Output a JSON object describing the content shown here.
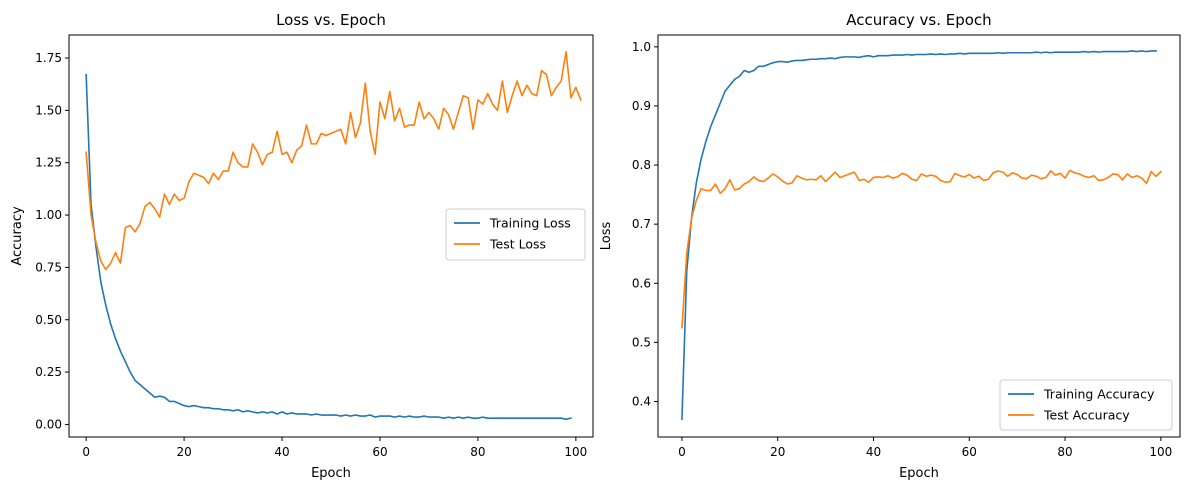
{
  "chart_data": [
    {
      "type": "line",
      "title": "Loss vs. Epoch",
      "xlabel": "Epoch",
      "ylabel": "Accuracy",
      "xlim": [
        -3.5,
        103.5
      ],
      "ylim": [
        -0.06,
        1.86
      ],
      "xticks": [
        0,
        20,
        40,
        60,
        80,
        100
      ],
      "xtick_labels": [
        "0",
        "20",
        "40",
        "60",
        "80",
        "100"
      ],
      "yticks": [
        0,
        0.25,
        0.5,
        0.75,
        1.0,
        1.25,
        1.5,
        1.75
      ],
      "ytick_labels": [
        "0.00",
        "0.25",
        "0.50",
        "0.75",
        "1.00",
        "1.25",
        "1.50",
        "1.75"
      ],
      "grid": false,
      "legend_position": "center-right",
      "series": [
        {
          "name": "Training Loss",
          "color": "#1f77b4",
          "x_start": 0,
          "values": [
            1.67,
            1.05,
            0.85,
            0.68,
            0.57,
            0.48,
            0.41,
            0.35,
            0.3,
            0.25,
            0.21,
            0.19,
            0.17,
            0.15,
            0.13,
            0.135,
            0.13,
            0.11,
            0.11,
            0.1,
            0.09,
            0.085,
            0.09,
            0.085,
            0.08,
            0.08,
            0.075,
            0.075,
            0.07,
            0.07,
            0.065,
            0.07,
            0.06,
            0.065,
            0.06,
            0.055,
            0.06,
            0.055,
            0.06,
            0.05,
            0.06,
            0.05,
            0.055,
            0.05,
            0.05,
            0.05,
            0.045,
            0.05,
            0.045,
            0.045,
            0.045,
            0.045,
            0.04,
            0.045,
            0.04,
            0.045,
            0.04,
            0.04,
            0.045,
            0.035,
            0.04,
            0.04,
            0.04,
            0.035,
            0.04,
            0.035,
            0.04,
            0.035,
            0.035,
            0.04,
            0.035,
            0.035,
            0.035,
            0.03,
            0.035,
            0.03,
            0.035,
            0.03,
            0.035,
            0.03,
            0.03,
            0.035,
            0.03,
            0.03,
            0.03,
            0.03,
            0.03,
            0.03,
            0.03,
            0.03,
            0.03,
            0.03,
            0.03,
            0.03,
            0.03,
            0.03,
            0.03,
            0.03,
            0.025,
            0.03
          ]
        },
        {
          "name": "Test Loss",
          "color": "#ff7f0e",
          "x_start": 0,
          "values": [
            1.3,
            1.0,
            0.87,
            0.78,
            0.74,
            0.77,
            0.82,
            0.77,
            0.94,
            0.95,
            0.92,
            0.96,
            1.04,
            1.06,
            1.03,
            0.99,
            1.1,
            1.05,
            1.1,
            1.07,
            1.08,
            1.16,
            1.2,
            1.19,
            1.18,
            1.15,
            1.2,
            1.17,
            1.21,
            1.21,
            1.3,
            1.25,
            1.23,
            1.23,
            1.34,
            1.3,
            1.24,
            1.29,
            1.3,
            1.4,
            1.29,
            1.3,
            1.25,
            1.31,
            1.33,
            1.43,
            1.34,
            1.34,
            1.39,
            1.38,
            1.39,
            1.4,
            1.41,
            1.34,
            1.49,
            1.37,
            1.44,
            1.63,
            1.4,
            1.29,
            1.54,
            1.46,
            1.59,
            1.45,
            1.51,
            1.42,
            1.43,
            1.43,
            1.54,
            1.46,
            1.49,
            1.46,
            1.41,
            1.51,
            1.48,
            1.41,
            1.49,
            1.57,
            1.56,
            1.41,
            1.55,
            1.53,
            1.58,
            1.53,
            1.5,
            1.64,
            1.49,
            1.57,
            1.64,
            1.57,
            1.62,
            1.58,
            1.57,
            1.69,
            1.67,
            1.57,
            1.61,
            1.64,
            1.78,
            1.56,
            1.61,
            1.55
          ]
        }
      ]
    },
    {
      "type": "line",
      "title": "Accuracy vs. Epoch",
      "xlabel": "Epoch",
      "ylabel": "Loss",
      "xlim": [
        -5,
        104
      ],
      "ylim": [
        0.34,
        1.02
      ],
      "xticks": [
        0,
        20,
        40,
        60,
        80,
        100
      ],
      "xtick_labels": [
        "0",
        "20",
        "40",
        "60",
        "80",
        "100"
      ],
      "yticks": [
        0.4,
        0.5,
        0.6,
        0.7,
        0.8,
        0.9,
        1.0
      ],
      "ytick_labels": [
        "0.4",
        "0.5",
        "0.6",
        "0.7",
        "0.8",
        "0.9",
        "1.0"
      ],
      "grid": false,
      "legend_position": "lower-right",
      "series": [
        {
          "name": "Training Accuracy",
          "color": "#1f77b4",
          "x_start": 0,
          "values": [
            0.37,
            0.62,
            0.71,
            0.77,
            0.81,
            0.84,
            0.865,
            0.885,
            0.905,
            0.925,
            0.935,
            0.945,
            0.95,
            0.96,
            0.957,
            0.96,
            0.967,
            0.967,
            0.97,
            0.973,
            0.975,
            0.975,
            0.974,
            0.976,
            0.977,
            0.977,
            0.978,
            0.979,
            0.979,
            0.98,
            0.98,
            0.981,
            0.98,
            0.982,
            0.983,
            0.983,
            0.983,
            0.982,
            0.984,
            0.985,
            0.983,
            0.985,
            0.985,
            0.985,
            0.986,
            0.986,
            0.986,
            0.987,
            0.986,
            0.987,
            0.987,
            0.987,
            0.988,
            0.987,
            0.988,
            0.987,
            0.988,
            0.988,
            0.989,
            0.988,
            0.989,
            0.989,
            0.989,
            0.989,
            0.989,
            0.989,
            0.99,
            0.989,
            0.99,
            0.99,
            0.99,
            0.99,
            0.99,
            0.99,
            0.991,
            0.99,
            0.991,
            0.99,
            0.991,
            0.991,
            0.991,
            0.991,
            0.991,
            0.991,
            0.992,
            0.991,
            0.992,
            0.991,
            0.992,
            0.992,
            0.992,
            0.992,
            0.992,
            0.992,
            0.993,
            0.992,
            0.993,
            0.992,
            0.993,
            0.993
          ]
        },
        {
          "name": "Test Accuracy",
          "color": "#ff7f0e",
          "x_start": 0,
          "values": [
            0.525,
            0.65,
            0.71,
            0.74,
            0.76,
            0.757,
            0.757,
            0.768,
            0.752,
            0.76,
            0.775,
            0.758,
            0.76,
            0.768,
            0.772,
            0.78,
            0.774,
            0.772,
            0.778,
            0.785,
            0.78,
            0.773,
            0.768,
            0.77,
            0.782,
            0.778,
            0.775,
            0.776,
            0.775,
            0.782,
            0.772,
            0.78,
            0.788,
            0.779,
            0.782,
            0.785,
            0.788,
            0.774,
            0.776,
            0.771,
            0.779,
            0.78,
            0.779,
            0.782,
            0.778,
            0.78,
            0.786,
            0.783,
            0.776,
            0.774,
            0.785,
            0.781,
            0.783,
            0.781,
            0.774,
            0.771,
            0.772,
            0.786,
            0.782,
            0.78,
            0.784,
            0.778,
            0.781,
            0.774,
            0.776,
            0.787,
            0.79,
            0.788,
            0.781,
            0.787,
            0.784,
            0.778,
            0.777,
            0.783,
            0.781,
            0.777,
            0.779,
            0.79,
            0.783,
            0.786,
            0.778,
            0.791,
            0.787,
            0.785,
            0.781,
            0.779,
            0.782,
            0.774,
            0.775,
            0.779,
            0.785,
            0.784,
            0.775,
            0.785,
            0.779,
            0.782,
            0.778,
            0.769,
            0.789,
            0.781,
            0.789
          ]
        }
      ]
    }
  ]
}
